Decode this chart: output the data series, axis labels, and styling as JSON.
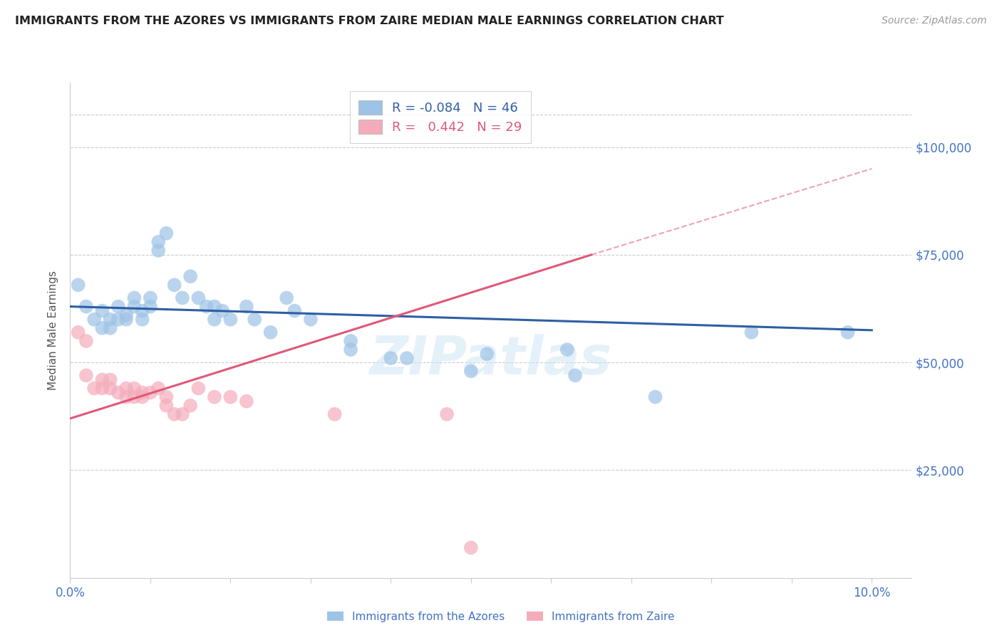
{
  "title": "IMMIGRANTS FROM THE AZORES VS IMMIGRANTS FROM ZAIRE MEDIAN MALE EARNINGS CORRELATION CHART",
  "source": "Source: ZipAtlas.com",
  "ylabel": "Median Male Earnings",
  "y_ticks": [
    0,
    25000,
    50000,
    75000,
    100000
  ],
  "y_tick_labels": [
    "",
    "$25,000",
    "$50,000",
    "$75,000",
    "$100,000"
  ],
  "legend1_r": "-0.084",
  "legend1_n": "46",
  "legend2_r": "0.442",
  "legend2_n": "29",
  "axis_label_color": "#4472c4",
  "title_color": "#222222",
  "watermark": "ZIPatlas",
  "blue_dots": [
    [
      0.001,
      68000
    ],
    [
      0.002,
      63000
    ],
    [
      0.003,
      60000
    ],
    [
      0.004,
      62000
    ],
    [
      0.004,
      58000
    ],
    [
      0.005,
      60000
    ],
    [
      0.005,
      58000
    ],
    [
      0.006,
      63000
    ],
    [
      0.006,
      60000
    ],
    [
      0.007,
      61000
    ],
    [
      0.007,
      60000
    ],
    [
      0.008,
      65000
    ],
    [
      0.008,
      63000
    ],
    [
      0.009,
      62000
    ],
    [
      0.009,
      60000
    ],
    [
      0.01,
      65000
    ],
    [
      0.01,
      63000
    ],
    [
      0.011,
      78000
    ],
    [
      0.011,
      76000
    ],
    [
      0.012,
      80000
    ],
    [
      0.013,
      68000
    ],
    [
      0.014,
      65000
    ],
    [
      0.015,
      70000
    ],
    [
      0.016,
      65000
    ],
    [
      0.017,
      63000
    ],
    [
      0.018,
      63000
    ],
    [
      0.018,
      60000
    ],
    [
      0.019,
      62000
    ],
    [
      0.02,
      60000
    ],
    [
      0.022,
      63000
    ],
    [
      0.023,
      60000
    ],
    [
      0.025,
      57000
    ],
    [
      0.027,
      65000
    ],
    [
      0.028,
      62000
    ],
    [
      0.03,
      60000
    ],
    [
      0.035,
      55000
    ],
    [
      0.035,
      53000
    ],
    [
      0.04,
      51000
    ],
    [
      0.042,
      51000
    ],
    [
      0.05,
      48000
    ],
    [
      0.052,
      52000
    ],
    [
      0.062,
      53000
    ],
    [
      0.063,
      47000
    ],
    [
      0.073,
      42000
    ],
    [
      0.085,
      57000
    ],
    [
      0.097,
      57000
    ]
  ],
  "pink_dots": [
    [
      0.001,
      57000
    ],
    [
      0.002,
      55000
    ],
    [
      0.002,
      47000
    ],
    [
      0.003,
      44000
    ],
    [
      0.004,
      46000
    ],
    [
      0.004,
      44000
    ],
    [
      0.005,
      46000
    ],
    [
      0.005,
      44000
    ],
    [
      0.006,
      43000
    ],
    [
      0.007,
      42000
    ],
    [
      0.007,
      44000
    ],
    [
      0.008,
      44000
    ],
    [
      0.008,
      42000
    ],
    [
      0.009,
      43000
    ],
    [
      0.009,
      42000
    ],
    [
      0.01,
      43000
    ],
    [
      0.011,
      44000
    ],
    [
      0.012,
      42000
    ],
    [
      0.012,
      40000
    ],
    [
      0.013,
      38000
    ],
    [
      0.014,
      38000
    ],
    [
      0.015,
      40000
    ],
    [
      0.016,
      44000
    ],
    [
      0.018,
      42000
    ],
    [
      0.02,
      42000
    ],
    [
      0.022,
      41000
    ],
    [
      0.033,
      38000
    ],
    [
      0.047,
      38000
    ],
    [
      0.05,
      7000
    ]
  ],
  "blue_line": {
    "x0": 0.0,
    "y0": 63000,
    "x1": 0.1,
    "y1": 57500
  },
  "pink_line_solid": {
    "x0": 0.0,
    "y0": 37000,
    "x1": 0.065,
    "y1": 75000
  },
  "pink_line_dashed": {
    "x0": 0.065,
    "y0": 75000,
    "x1": 0.1,
    "y1": 95000
  },
  "xlim": [
    0.0,
    0.105
  ],
  "ylim": [
    0,
    115000
  ],
  "background_color": "#ffffff",
  "grid_color": "#cccccc",
  "blue_color": "#9dc3e6",
  "pink_color": "#f4acbb",
  "line_blue_color": "#2e5fa3",
  "line_pink_color": "#e05878"
}
